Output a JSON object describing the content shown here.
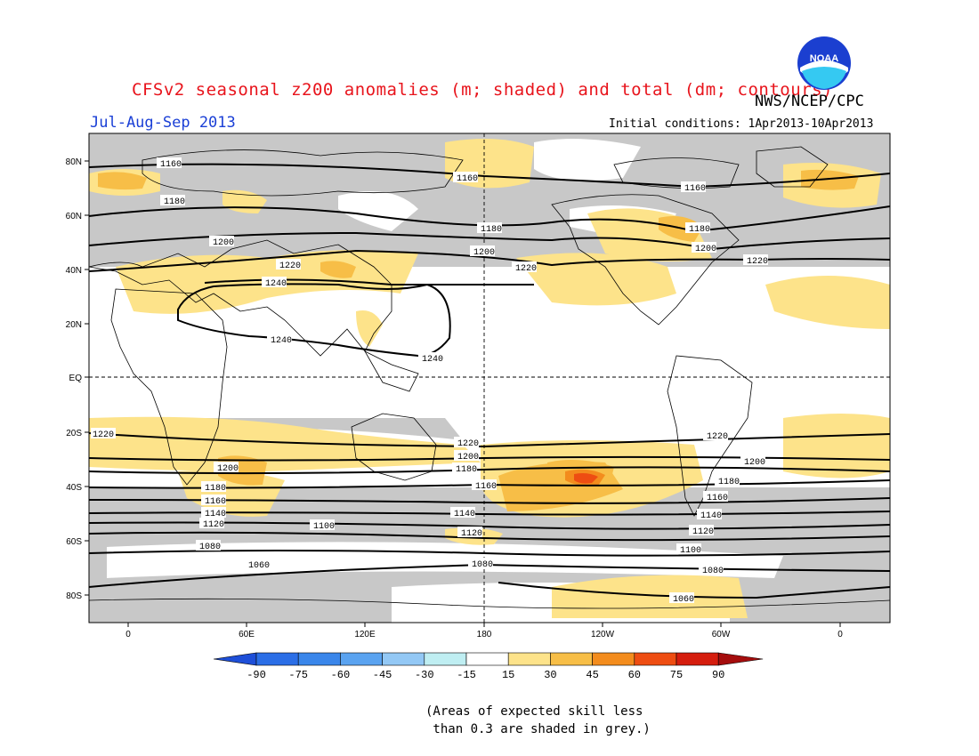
{
  "title": "CFSv2 seasonal z200 anomalies (m; shaded) and total (dm; contours)",
  "agency": "NWS/NCEP/CPC",
  "logo_text": "NOAA",
  "period": "Jul-Aug-Sep 2013",
  "initial_conditions": "Initial conditions: 1Apr2013-10Apr2013",
  "lat_labels": [
    "80N",
    "60N",
    "40N",
    "20N",
    "EQ",
    "20S",
    "40S",
    "60S",
    "80S"
  ],
  "lon_labels": [
    "0",
    "60E",
    "120E",
    "180",
    "120W",
    "60W",
    "0"
  ],
  "colorbar": {
    "ticks": [
      "-90",
      "-75",
      "-60",
      "-45",
      "-30",
      "-15",
      "15",
      "30",
      "45",
      "60",
      "75",
      "90"
    ],
    "colors": [
      "#1e4fd8",
      "#2b6ee6",
      "#3a86ea",
      "#5aa3f0",
      "#93c8f5",
      "#bfeef2",
      "#ffffff",
      "#fde38a",
      "#f7be47",
      "#f38c1d",
      "#ee4d12",
      "#d51d0e",
      "#a50d0d"
    ]
  },
  "contour_labels": {
    "c1160": "1160",
    "c1180": "1180",
    "c1200": "1200",
    "c1220": "1220",
    "c1240": "1240",
    "c1140": "1140",
    "c1120": "1120",
    "c1100": "1100",
    "c1080": "1080",
    "c1060": "1060"
  },
  "skill_note": "(Areas of expected skill less\n than 0.3 are shaded in grey.)",
  "colors": {
    "skill_grey": "#c8c8c8",
    "title_red": "#e8141c",
    "period_blue": "#1a3fd6"
  }
}
